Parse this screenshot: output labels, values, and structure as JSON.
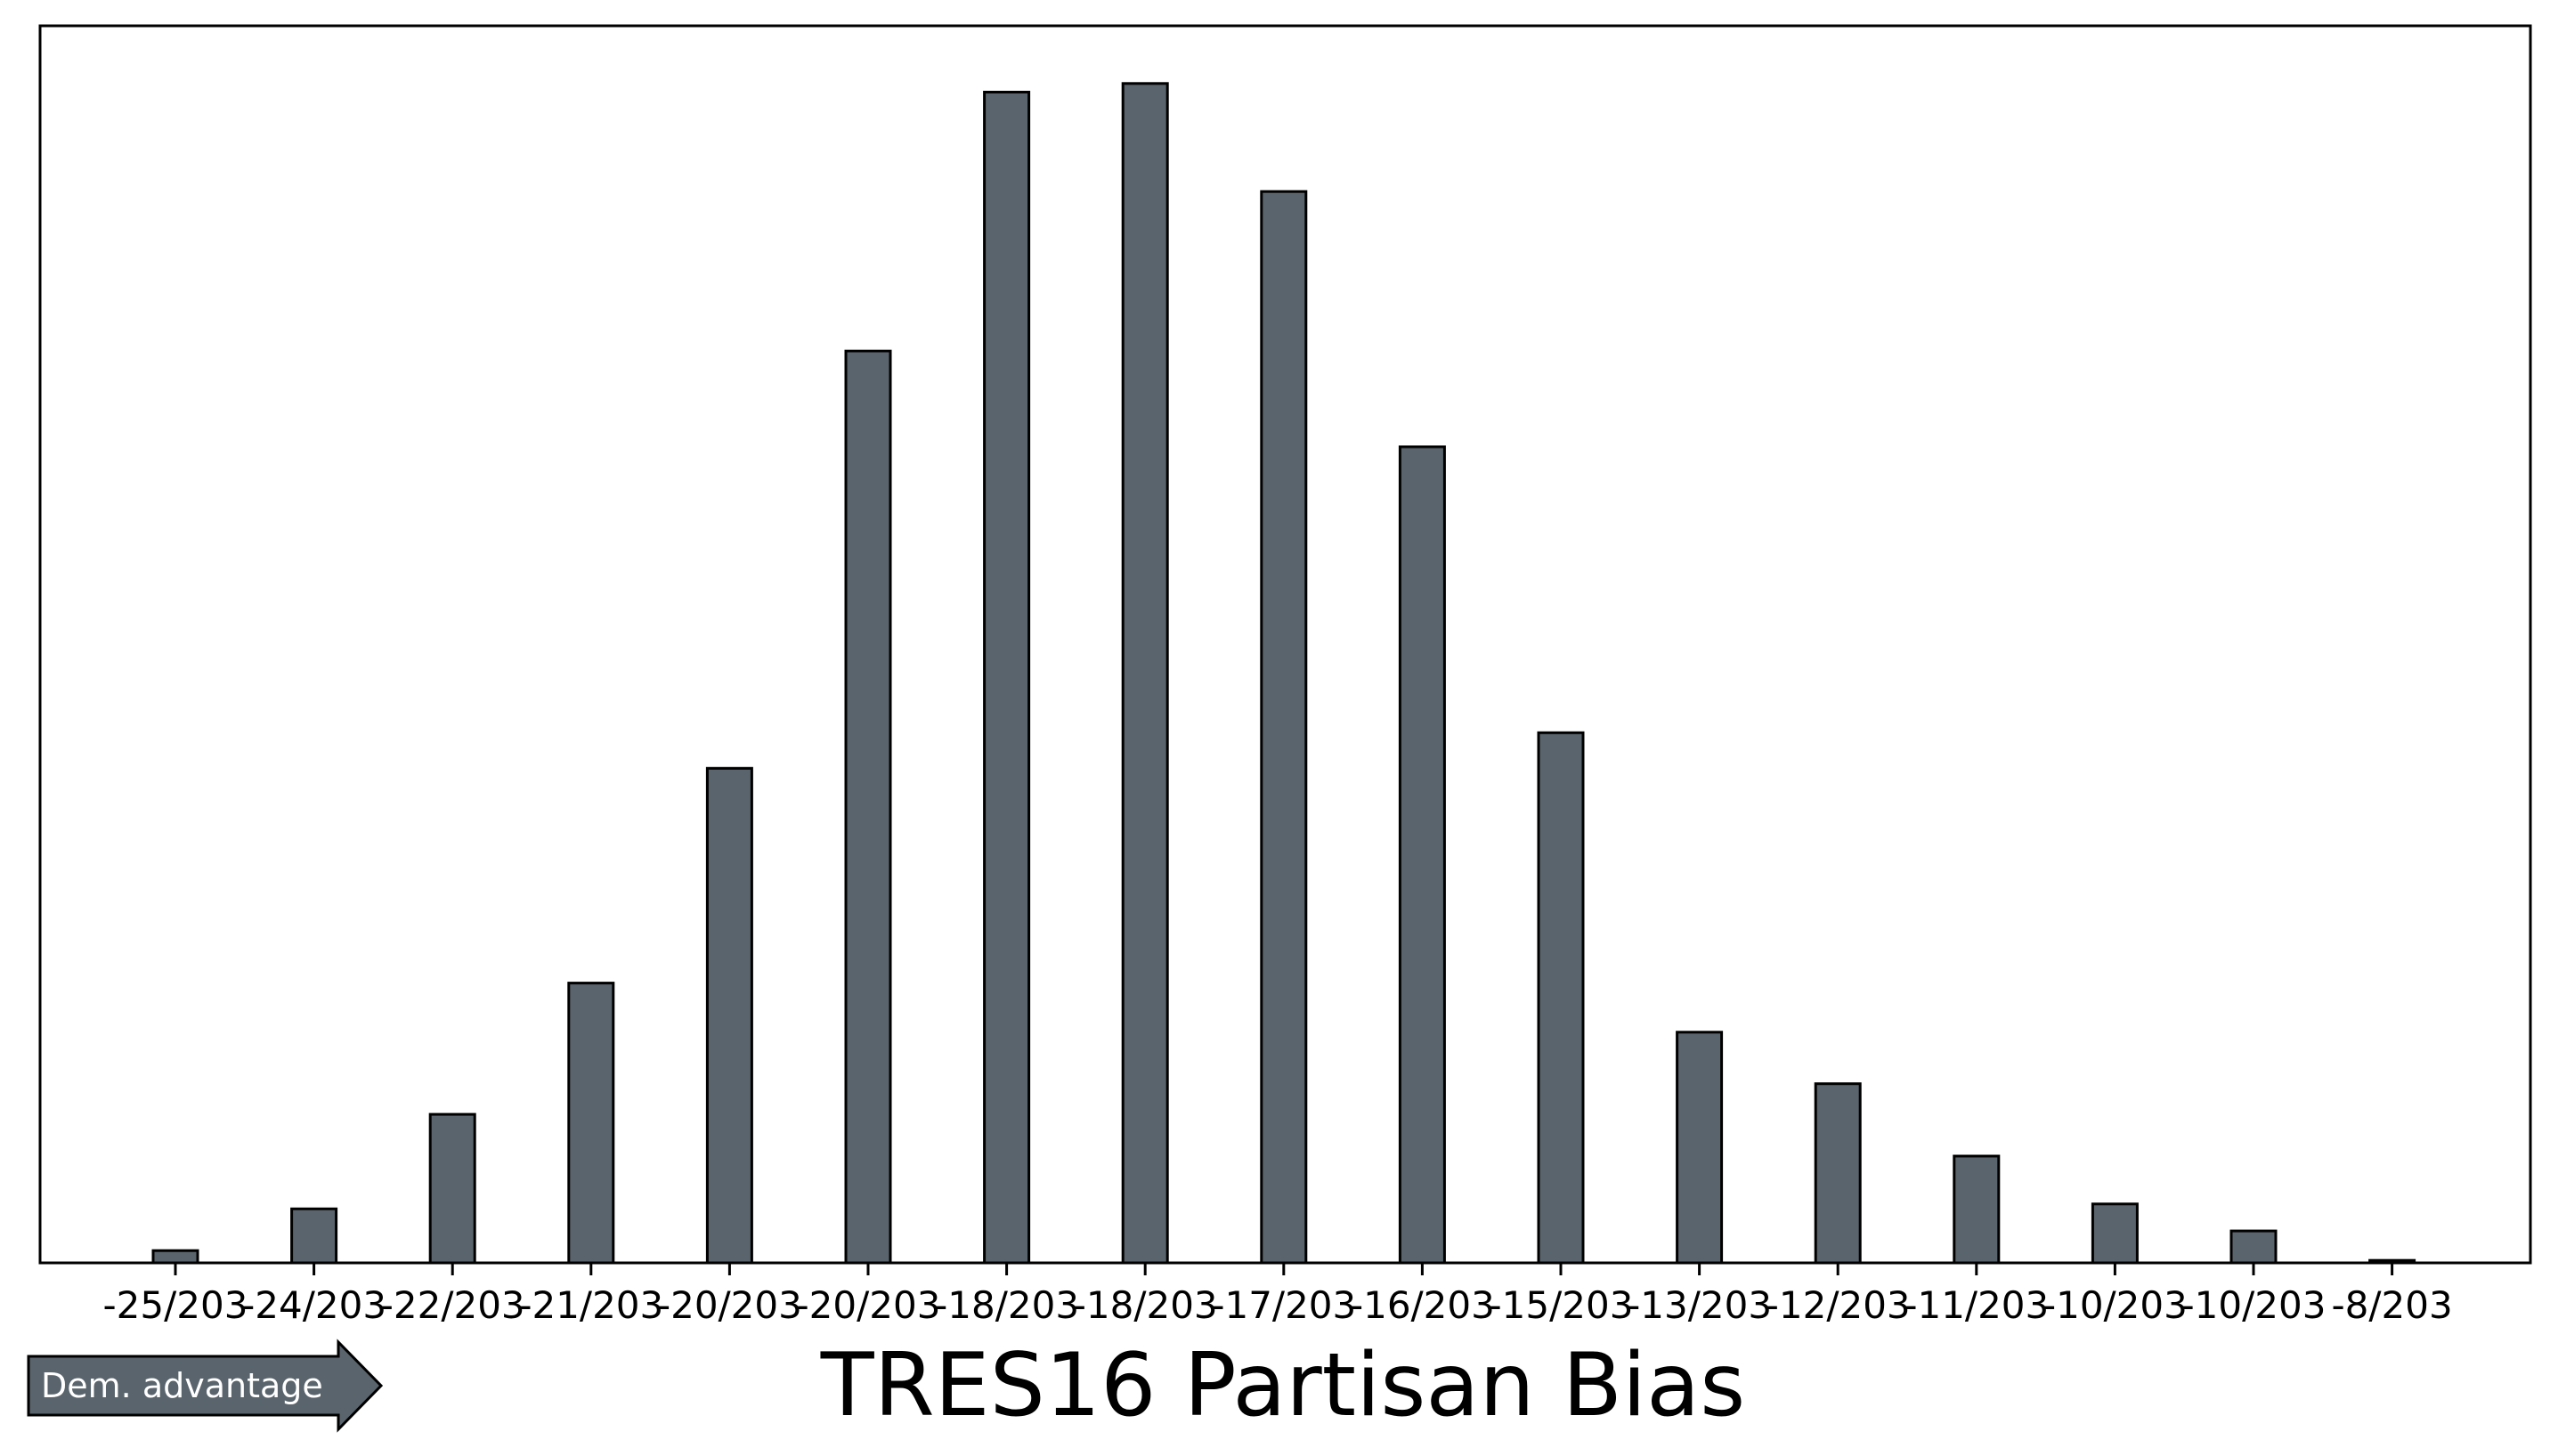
{
  "chart_data": {
    "type": "bar",
    "categories": [
      "-25/203",
      "-24/203",
      "-22/203",
      "-21/203",
      "-20/203",
      "-20/203",
      "-18/203",
      "-18/203",
      "-17/203",
      "-16/203",
      "-15/203",
      "-13/203",
      "-12/203",
      "-11/203",
      "-10/203",
      "-10/203",
      "-8/203"
    ],
    "values": [
      1,
      4.4,
      12.1,
      22.8,
      40.3,
      74.3,
      95.4,
      96.1,
      87.3,
      66.5,
      43.2,
      18.8,
      14.6,
      8.7,
      4.8,
      2.6,
      0.2
    ],
    "ylim": [
      0,
      100.8
    ],
    "xlabel": "TRES16 Partisan Bias",
    "ylabel": "",
    "title": "",
    "grid": false,
    "bar_color": "#5a646c",
    "edge_color": "#000000",
    "annotation": {
      "text": "Dem. advantage",
      "shape": "right-arrow",
      "fill": "#5a646c"
    }
  }
}
